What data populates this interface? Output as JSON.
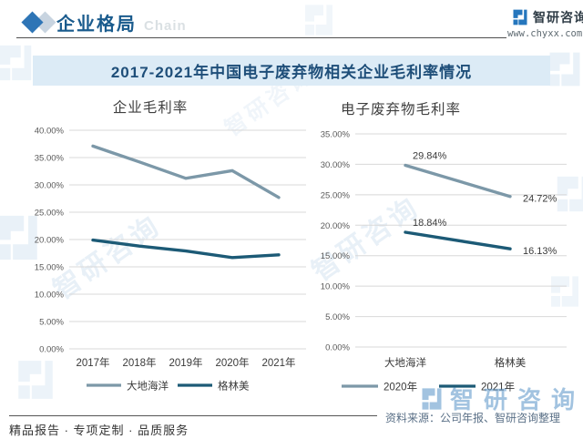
{
  "header": {
    "title": "企业格局",
    "watermark_text": "Chain",
    "brand": "智研咨询",
    "website": "www.chyxx.com"
  },
  "banner": {
    "title": "2017-2021年中国电子废弃物相关企业毛利率情况"
  },
  "watermark": {
    "brand": "智研咨询"
  },
  "footer": {
    "services": "精品报告 · 专项定制 · 品质服务",
    "source": "资料来源：公司年报、智研咨询整理"
  },
  "colors": {
    "accent_blue": "#2e75b6",
    "diamond_secondary": "#c8d4e0",
    "logo_blue": "#2576bd",
    "banner_bg": "#dcebf6",
    "banner_text": "#1e4e79",
    "header_title": "#1a5b8d",
    "series_grey": "#7c98a8",
    "series_dark": "#1c5a76",
    "grid": "#d8d8d8",
    "axis_text": "#595959",
    "tick_text": "#3a3a3a",
    "watermark_blue": "#7fb0d5"
  },
  "chart_data": [
    {
      "type": "line",
      "title": "企业毛利率",
      "categories": [
        "2017年",
        "2018年",
        "2019年",
        "2020年",
        "2021年"
      ],
      "series": [
        {
          "name": "大地海洋",
          "color_key": "series_grey",
          "values": [
            37.1,
            34.2,
            31.2,
            32.6,
            27.7
          ]
        },
        {
          "name": "格林美",
          "color_key": "series_dark",
          "values": [
            19.9,
            18.8,
            17.9,
            16.7,
            17.2
          ]
        }
      ],
      "xlabel": "",
      "ylabel": "",
      "ylim": [
        0,
        40
      ],
      "ytick_step": 5,
      "ytick_format": "percent2",
      "grid": true,
      "legend_position": "bottom",
      "data_labels": false
    },
    {
      "type": "line",
      "title": "电子废弃物毛利率",
      "categories": [
        "大地海洋",
        "格林美"
      ],
      "series": [
        {
          "name": "2020年",
          "color_key": "series_grey",
          "values": [
            29.84,
            24.72
          ]
        },
        {
          "name": "2021年",
          "color_key": "series_dark",
          "values": [
            18.84,
            16.13
          ]
        }
      ],
      "xlabel": "",
      "ylabel": "",
      "ylim": [
        0,
        35
      ],
      "ytick_step": 5,
      "ytick_format": "percent2",
      "grid": true,
      "legend_position": "bottom",
      "data_labels": true
    }
  ]
}
